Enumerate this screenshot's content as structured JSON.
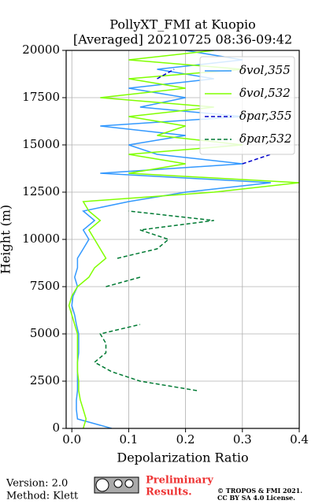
{
  "chart_data": {
    "type": "line",
    "title": "PollyXT_FMI at Kuopio",
    "subtitle": "[Averaged] 20210725 08:36-09:42",
    "x_label": "Depolarization Ratio",
    "y_label": "Height (m)",
    "xlim": [
      -0.01,
      0.4
    ],
    "xticks": [
      {
        "value": 0,
        "label": "0.0"
      },
      0.1,
      0.2,
      0.3,
      0.4
    ],
    "ylim": [
      0,
      20000
    ],
    "yticks": [
      0,
      2500,
      5000,
      7500,
      10000,
      12500,
      15000,
      17500,
      20000
    ],
    "grid": true,
    "legend": "upper right",
    "y": [
      0,
      500,
      1000,
      1500,
      2000,
      2500,
      3000,
      3500,
      4000,
      4500,
      5000,
      5500,
      6000,
      6500,
      7000,
      7500,
      8000,
      8500,
      9000,
      9500,
      10000,
      10500,
      11000,
      11500,
      12000,
      12500,
      13000,
      13500,
      14000,
      14500,
      15000,
      15500,
      16000,
      16500,
      17000,
      17500,
      18000,
      18500,
      19000,
      19500,
      20000
    ],
    "series": [
      {
        "name": "δvol,355",
        "color": "#3399ff",
        "dash": false,
        "values": [
          0.07,
          0.01,
          0.008,
          0.008,
          0.01,
          0.01,
          0.01,
          0.01,
          0.012,
          0.012,
          0.012,
          0.008,
          0.005,
          0.0,
          0.002,
          0.01,
          0.005,
          0.01,
          0.01,
          0.02,
          0.03,
          0.02,
          0.04,
          0.02,
          0.1,
          0.2,
          0.35,
          0.05,
          0.3,
          0.15,
          0.1,
          0.2,
          0.05,
          0.3,
          0.12,
          0.2,
          0.1,
          0.25,
          0.15,
          0.3,
          0.2
        ]
      },
      {
        "name": "δvol,532",
        "color": "#80ff00",
        "dash": false,
        "values": [
          0.02,
          0.025,
          0.02,
          0.015,
          0.012,
          0.012,
          0.01,
          0.01,
          0.01,
          0.01,
          0.01,
          0.005,
          0.0,
          -0.005,
          0.0,
          0.01,
          0.03,
          0.04,
          0.06,
          0.05,
          0.04,
          0.03,
          0.05,
          0.03,
          0.02,
          0.25,
          0.4,
          0.1,
          0.2,
          0.1,
          0.3,
          0.15,
          0.2,
          0.1,
          0.25,
          0.05,
          0.2,
          0.1,
          0.3,
          0.1,
          0.25
        ]
      },
      {
        "name": "δpar,355",
        "color": "#0000cc",
        "dash": true,
        "values": [
          null,
          null,
          null,
          null,
          null,
          null,
          null,
          null,
          null,
          null,
          null,
          null,
          null,
          null,
          null,
          null,
          null,
          null,
          null,
          null,
          null,
          null,
          null,
          null,
          null,
          null,
          null,
          null,
          0.3,
          0.35,
          null,
          null,
          null,
          null,
          null,
          null,
          null,
          0.15,
          0.18,
          null,
          null
        ]
      },
      {
        "name": "δpar,532",
        "color": "#007a33",
        "dash": true,
        "values": [
          null,
          null,
          null,
          null,
          0.22,
          0.12,
          0.07,
          0.04,
          0.06,
          0.06,
          0.05,
          0.12,
          null,
          null,
          null,
          0.06,
          0.12,
          null,
          0.08,
          0.15,
          0.17,
          0.12,
          0.25,
          0.1,
          null,
          null,
          null,
          null,
          null,
          null,
          null,
          null,
          null,
          null,
          null,
          null,
          null,
          null,
          null,
          null,
          null
        ]
      }
    ]
  },
  "footer": {
    "version": "Version: 2.0",
    "method": "Method: Klett",
    "notice": "Preliminary",
    "notice2": "Results.",
    "copyright": "© TROPOS & FMI 2021.",
    "license": "CC BY SA 4.0 License."
  }
}
